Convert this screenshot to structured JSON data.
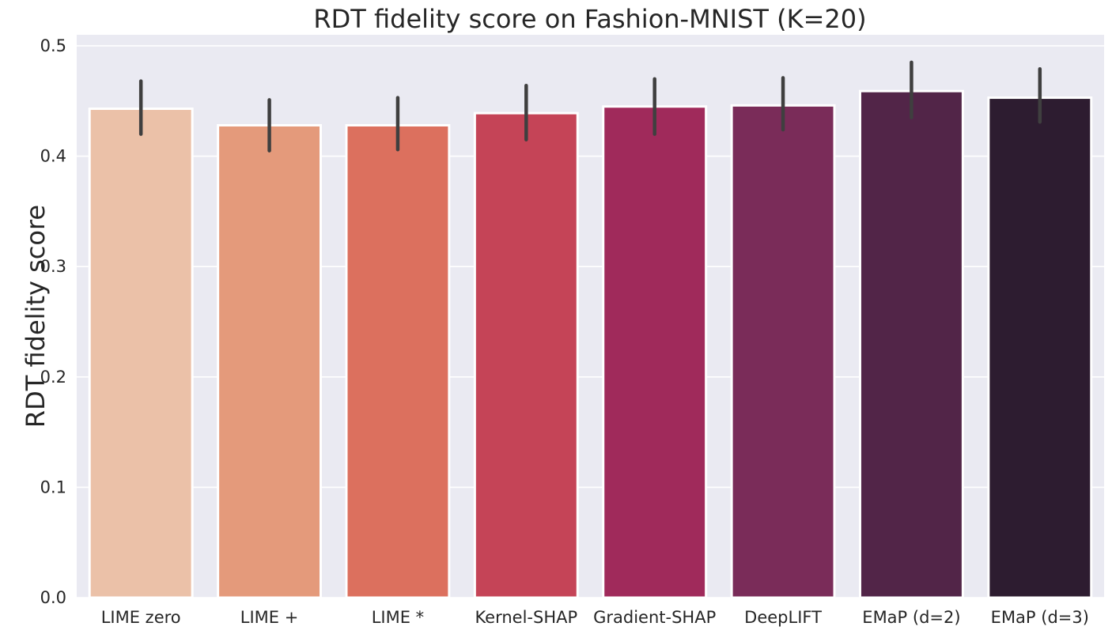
{
  "chart_data": {
    "type": "bar",
    "title": "RDT fidelity score on Fashion-MNIST (K=20)",
    "xlabel": "",
    "ylabel": "RDT fidelity score",
    "ylim": [
      0,
      0.51
    ],
    "yticks": [
      "0.0",
      "0.1",
      "0.2",
      "0.3",
      "0.4",
      "0.5"
    ],
    "grid": true,
    "background": "#eaeaf2",
    "categories": [
      "LIME zero",
      "LIME +",
      "LIME *",
      "Kernel-SHAP",
      "Gradient-SHAP",
      "DeepLIFT",
      "EMaP (d=2)",
      "EMaP (d=3)"
    ],
    "values": [
      0.443,
      0.428,
      0.428,
      0.439,
      0.445,
      0.446,
      0.459,
      0.453
    ],
    "err_low": [
      0.42,
      0.405,
      0.406,
      0.415,
      0.42,
      0.424,
      0.435,
      0.431
    ],
    "err_high": [
      0.468,
      0.451,
      0.453,
      0.464,
      0.47,
      0.471,
      0.485,
      0.479
    ],
    "colors": [
      "#ebc1a8",
      "#e49a7b",
      "#dc705e",
      "#c54457",
      "#a02a5b",
      "#7a2c59",
      "#522548",
      "#2d1c30"
    ]
  }
}
